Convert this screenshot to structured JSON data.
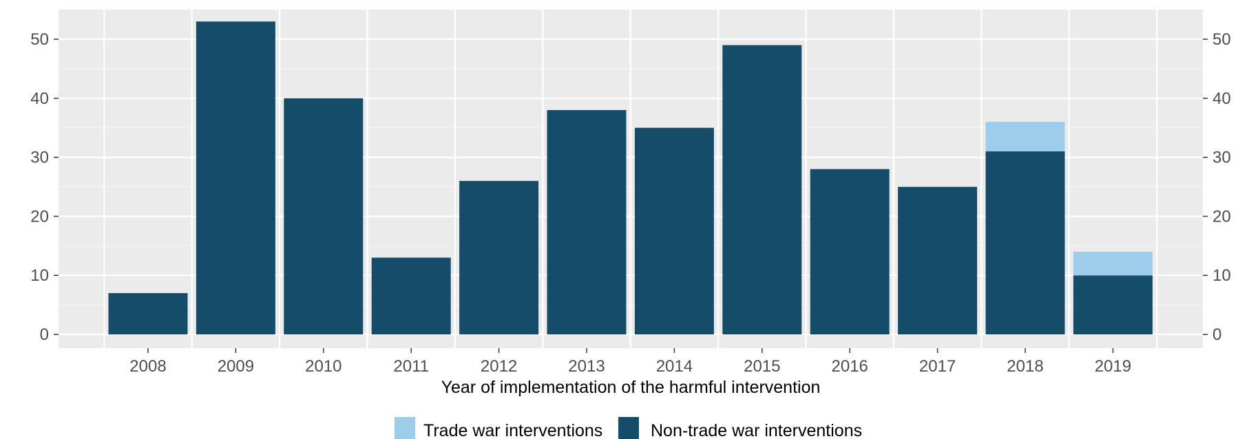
{
  "chart_data": {
    "type": "bar",
    "stacked": true,
    "categories": [
      "2008",
      "2009",
      "2010",
      "2011",
      "2012",
      "2013",
      "2014",
      "2015",
      "2016",
      "2017",
      "2018",
      "2019"
    ],
    "series": [
      {
        "name": "Non-trade war interventions",
        "color": "#154c69",
        "values": [
          7,
          53,
          40,
          13,
          26,
          38,
          35,
          49,
          28,
          25,
          31,
          10
        ]
      },
      {
        "name": "Trade war interventions",
        "color": "#9dcdeb",
        "values": [
          0,
          0,
          0,
          0,
          0,
          0,
          0,
          0,
          0,
          0,
          5,
          4
        ]
      }
    ],
    "legend_order": [
      "Trade war interventions",
      "Non-trade war interventions"
    ],
    "title": "",
    "xlabel": "Year of implementation of the harmful intervention",
    "ylabel": "",
    "ylim": [
      0,
      55
    ],
    "yticks": [
      0,
      10,
      20,
      30,
      40,
      50
    ],
    "secondary_y_axis": true,
    "grid": true,
    "legend_position": "bottom"
  }
}
